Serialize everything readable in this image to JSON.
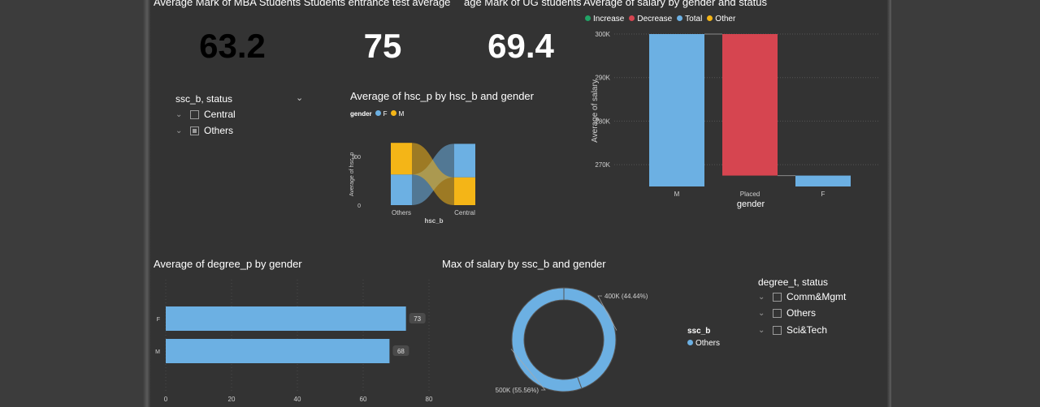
{
  "kpis": [
    {
      "title": "Average Mark of MBA Students Students entrance test average",
      "value": "63.2",
      "color": "#000000"
    },
    {
      "title": "",
      "value": "75",
      "color": "#ffffff"
    },
    {
      "title": "age Mark of UG students",
      "value": "69.4",
      "color": "#ffffff"
    }
  ],
  "slicer_ssc": {
    "header": "ssc_b, status",
    "items": [
      {
        "label": "Central",
        "checked": false
      },
      {
        "label": "Others",
        "checked": true
      }
    ]
  },
  "slicer_degree": {
    "header": "degree_t, status",
    "items": [
      {
        "label": "Comm&Mgmt"
      },
      {
        "label": "Others"
      },
      {
        "label": "Sci&Tech"
      }
    ]
  },
  "chart_data": [
    {
      "id": "ribbon",
      "type": "bar",
      "title": "Average of hsc_p by hsc_b and gender",
      "legend_title": "gender",
      "categories": [
        "Others",
        "Central"
      ],
      "series": [
        {
          "name": "F",
          "values": [
            63,
            69
          ],
          "color": "#6cb0e3"
        },
        {
          "name": "M",
          "values": [
            65,
            57
          ],
          "color": "#f4b517"
        }
      ],
      "xlabel": "hsc_b",
      "ylabel": "Average of hsc_p",
      "yticks": [
        0,
        100
      ],
      "ylim": [
        0,
        140
      ]
    },
    {
      "id": "waterfall",
      "type": "bar",
      "title": "Average of salary by gender and status",
      "legend": [
        {
          "name": "Increase",
          "color": "#21a366"
        },
        {
          "name": "Decrease",
          "color": "#d64550"
        },
        {
          "name": "Total",
          "color": "#6cb0e3"
        },
        {
          "name": "Other",
          "color": "#f4b517"
        }
      ],
      "categories": [
        "M",
        "Placed",
        "F"
      ],
      "bars": [
        {
          "category": "M",
          "start": 265000,
          "end": 300000,
          "color": "#6cb0e3"
        },
        {
          "category": "Placed",
          "start": 267500,
          "end": 300000,
          "color": "#d64550"
        },
        {
          "category": "F",
          "start": 265000,
          "end": 267500,
          "color": "#6cb0e3"
        }
      ],
      "yticks": [
        "300K",
        "290K",
        "280K",
        "270K"
      ],
      "ytick_values": [
        300000,
        290000,
        280000,
        270000
      ],
      "ylim": [
        265000,
        300000
      ],
      "xlabel": "gender",
      "ylabel": "Average of salary"
    },
    {
      "id": "hbar",
      "type": "bar",
      "title": "Average of degree_p by gender",
      "categories": [
        "F",
        "M"
      ],
      "values": [
        73,
        68
      ],
      "data_labels": [
        "73",
        "68"
      ],
      "color": "#6cb0e3",
      "xticks": [
        0,
        20,
        40,
        60,
        80
      ],
      "xlim": [
        0,
        80
      ]
    },
    {
      "id": "donut",
      "type": "pie",
      "title": "Max of salary by ssc_b and gender",
      "legend_title": "ssc_b",
      "legend": [
        {
          "name": "Others",
          "color": "#6cb0e3"
        }
      ],
      "slices": [
        {
          "value": 400000,
          "label": "400K (44.44%)"
        },
        {
          "value": 500000,
          "label": "500K (55.56%)"
        }
      ],
      "color": "#6cb0e3"
    }
  ]
}
